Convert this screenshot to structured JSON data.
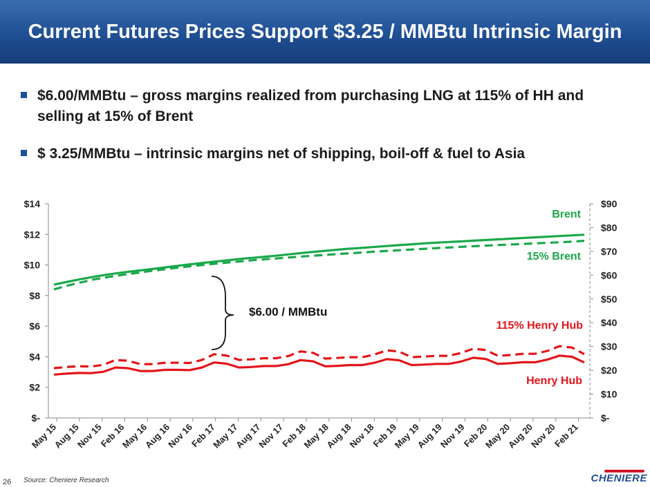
{
  "title": "Current Futures Prices Support $3.25 / MMBtu Intrinsic Margin",
  "bullets": [
    "$6.00/MMBtu – gross margins realized from purchasing LNG at 115% of HH and selling at 15% of Brent",
    "$ 3.25/MMBtu – intrinsic margins net of shipping, boil-off & fuel to Asia"
  ],
  "source": "Source: Cheniere Research",
  "page_number": "26",
  "logo_text": "CHENIERE",
  "colors": {
    "title_bg": "#1f4f94",
    "brent": "#1aa84a",
    "henry": "#e3151a",
    "bullet": "#1a4f9c"
  },
  "chart_data": {
    "type": "line",
    "x_labels": [
      "May 15",
      "Aug 15",
      "Nov 15",
      "Feb 16",
      "May 16",
      "Aug 16",
      "Nov 16",
      "Feb 17",
      "May 17",
      "Aug 17",
      "Nov 17",
      "Feb 18",
      "May 18",
      "Aug 18",
      "Nov 18",
      "Feb 19",
      "May 19",
      "Aug 19",
      "Nov 19",
      "Feb 20",
      "May 20",
      "Aug 20",
      "Nov 20",
      "Feb 21"
    ],
    "y_left": {
      "ticks": [
        "$-",
        "$2",
        "$4",
        "$6",
        "$8",
        "$10",
        "$12",
        "$14"
      ],
      "range": [
        0,
        14
      ]
    },
    "y_right": {
      "ticks": [
        "$-",
        "$10",
        "$20",
        "$30",
        "$40",
        "$50",
        "$60",
        "$70",
        "$80",
        "$90"
      ],
      "range": [
        0,
        90
      ]
    },
    "annotation": "$6.00 / MMBtu",
    "series": [
      {
        "name": "Brent",
        "axis": "right",
        "style": "solid",
        "color": "#1aa84a",
        "values": [
          56,
          57.2,
          58.3,
          59.3,
          60.2,
          61,
          61.7,
          62.3,
          63,
          63.7,
          64.4,
          65,
          65.6,
          66.2,
          66.8,
          67.3,
          67.8,
          68.3,
          68.9,
          69.5,
          70,
          70.5,
          71,
          71.4,
          71.8,
          72.2,
          72.6,
          73,
          73.4,
          73.7,
          74,
          74.3,
          74.6,
          74.9,
          75.2,
          75.5,
          75.8,
          76.1,
          76.4,
          76.7,
          77
        ]
      },
      {
        "name": "15% Brent",
        "axis": "left",
        "style": "dashed",
        "color": "#1aa84a",
        "values": [
          8.4,
          8.65,
          8.85,
          9.05,
          9.2,
          9.33,
          9.45,
          9.57,
          9.68,
          9.79,
          9.89,
          9.98,
          10.07,
          10.15,
          10.23,
          10.31,
          10.38,
          10.44,
          10.51,
          10.57,
          10.63,
          10.69,
          10.75,
          10.8,
          10.86,
          10.91,
          10.96,
          11.01,
          11.06,
          11.11,
          11.15,
          11.2,
          11.24,
          11.28,
          11.32,
          11.36,
          11.4,
          11.44,
          11.48,
          11.52,
          11.58
        ]
      },
      {
        "name": "Henry Hub",
        "axis": "right",
        "style": "solid",
        "color": "#e3151a",
        "values": [
          18.2,
          18.6,
          18.9,
          18.8,
          19.4,
          21.2,
          20.9,
          19.7,
          19.7,
          20.2,
          20.2,
          20.1,
          21.2,
          23.3,
          22.8,
          21.2,
          21.4,
          21.8,
          21.8,
          22.6,
          24.3,
          23.8,
          21.7,
          21.9,
          22.2,
          22.2,
          23.2,
          24.7,
          24.2,
          22.2,
          22.4,
          22.7,
          22.7,
          23.7,
          25.3,
          24.8,
          22.7,
          23.0,
          23.4,
          23.4,
          24.5,
          26.2,
          25.7,
          23.3
        ]
      },
      {
        "name": "115% Henry Hub",
        "axis": "left",
        "style": "dashed",
        "color": "#e3151a",
        "values": [
          3.25,
          3.33,
          3.38,
          3.36,
          3.47,
          3.79,
          3.74,
          3.52,
          3.52,
          3.61,
          3.61,
          3.59,
          3.79,
          4.17,
          4.08,
          3.79,
          3.83,
          3.9,
          3.9,
          4.04,
          4.35,
          4.26,
          3.88,
          3.92,
          3.97,
          3.97,
          4.15,
          4.42,
          4.33,
          3.97,
          4.01,
          4.06,
          4.06,
          4.24,
          4.53,
          4.44,
          4.06,
          4.11,
          4.19,
          4.19,
          4.38,
          4.69,
          4.6,
          4.17
        ]
      }
    ],
    "series_labels": [
      "Brent",
      "15% Brent",
      "115% Henry Hub",
      "Henry Hub"
    ]
  }
}
